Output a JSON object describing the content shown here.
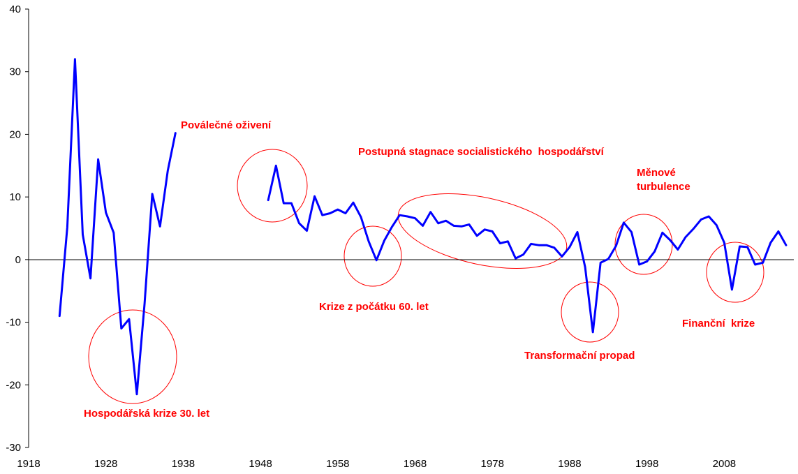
{
  "chart_data": {
    "type": "line",
    "title": "",
    "xlabel": "",
    "ylabel": "",
    "xlim": [
      1918,
      2017
    ],
    "ylim": [
      -30,
      40
    ],
    "x_ticks": [
      1918,
      1928,
      1938,
      1948,
      1958,
      1968,
      1978,
      1988,
      1998,
      2008
    ],
    "y_ticks": [
      -30,
      -20,
      -10,
      0,
      10,
      20,
      30,
      40
    ],
    "grid": false,
    "legend": "none",
    "line_color": "#0000ff",
    "annotation_color": "#ff0000",
    "series": [
      {
        "segments": [
          {
            "x": [
              1922,
              1923,
              1924,
              1925,
              1926,
              1927,
              1928,
              1929,
              1930,
              1931,
              1932,
              1933,
              1934,
              1935,
              1936,
              1937
            ],
            "y": [
              -9,
              5.2,
              32,
              4,
              -3,
              16,
              7.5,
              4.3,
              -11,
              -9.5,
              -21.5,
              -7,
              10.5,
              5.3,
              14.2,
              20.2
            ]
          },
          {
            "x": [
              1949,
              1950,
              1951,
              1952,
              1953,
              1954,
              1955,
              1956,
              1957,
              1958,
              1959,
              1960,
              1961,
              1962,
              1963,
              1964,
              1965,
              1966,
              1967,
              1968,
              1969,
              1970,
              1971,
              1972,
              1973,
              1974,
              1975,
              1976,
              1977,
              1978,
              1979,
              1980,
              1981,
              1982,
              1983,
              1984,
              1985,
              1986,
              1987,
              1988,
              1989,
              1990,
              1991,
              1992,
              1993,
              1994,
              1995,
              1996,
              1997,
              1998,
              1999,
              2000,
              2001,
              2002,
              2003,
              2004,
              2005,
              2006,
              2007,
              2008,
              2009,
              2010,
              2011,
              2012,
              2013,
              2014,
              2015,
              2016
            ],
            "y": [
              9.5,
              15,
              9,
              9,
              5.8,
              4.6,
              10.1,
              7.1,
              7.4,
              8,
              7.4,
              9.1,
              6.8,
              2.9,
              -0.1,
              3,
              5.2,
              7.1,
              6.9,
              6.6,
              5.4,
              7.6,
              5.8,
              6.2,
              5.4,
              5.3,
              5.6,
              3.8,
              4.8,
              4.5,
              2.6,
              2.9,
              0.2,
              0.8,
              2.5,
              2.3,
              2.3,
              1.9,
              0.5,
              2,
              4.4,
              -1.2,
              -11.6,
              -0.5,
              0.1,
              2.2,
              5.9,
              4.4,
              -0.8,
              -0.3,
              1.3,
              4.3,
              3.1,
              1.6,
              3.6,
              4.9,
              6.4,
              6.9,
              5.5,
              2.7,
              -4.8,
              2.1,
              2,
              -0.8,
              -0.5,
              2.7,
              4.5,
              2.3
            ]
          }
        ]
      }
    ],
    "annotations": [
      {
        "text": "Poválečné oživení"
      },
      {
        "text": "Postupná stagnace socialistického  hospodářství"
      },
      {
        "text": "Měnové"
      },
      {
        "text": "turbulence"
      },
      {
        "text": "Krize z počátku 60. let"
      },
      {
        "text": "Transformační propad"
      },
      {
        "text": "Finanční  krize"
      },
      {
        "text": "Hospodářská krize 30. let"
      }
    ]
  }
}
